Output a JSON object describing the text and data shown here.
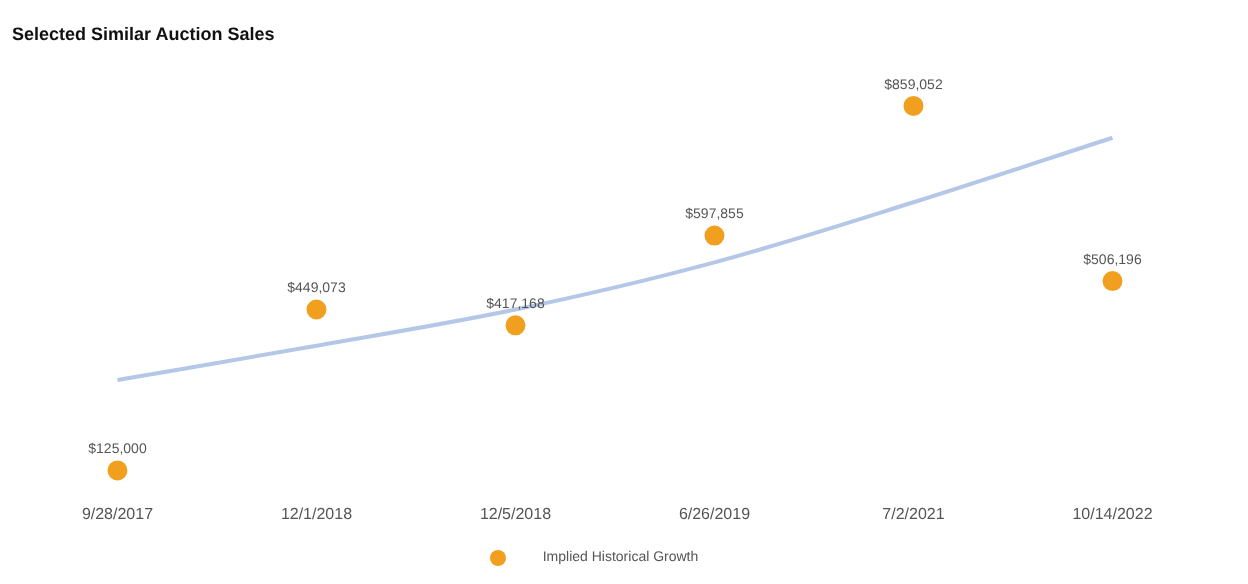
{
  "chart_data": {
    "type": "scatter",
    "title": "Selected Similar Auction Sales",
    "categories": [
      "9/28/2017",
      "12/1/2018",
      "12/5/2018",
      "6/26/2019",
      "7/2/2021",
      "10/14/2022"
    ],
    "grid": false,
    "legend": "bottom",
    "tick_labels": "x",
    "series": [
      {
        "color": "#f0a01e",
        "marker": "circle",
        "values": [
          125000,
          449073,
          417168,
          597855,
          859052,
          506196
        ],
        "value_labels": [
          "$125,000",
          "$449,073",
          "$417,168",
          "$597,855",
          "$859,052",
          "$506,196"
        ]
      },
      {
        "type": "line",
        "name": "Implied Historical Growth",
        "color": "#b4c7e7",
        "marker": "none",
        "values": [
          307000,
          376000,
          449000,
          544000,
          665000,
          795000
        ]
      }
    ]
  }
}
